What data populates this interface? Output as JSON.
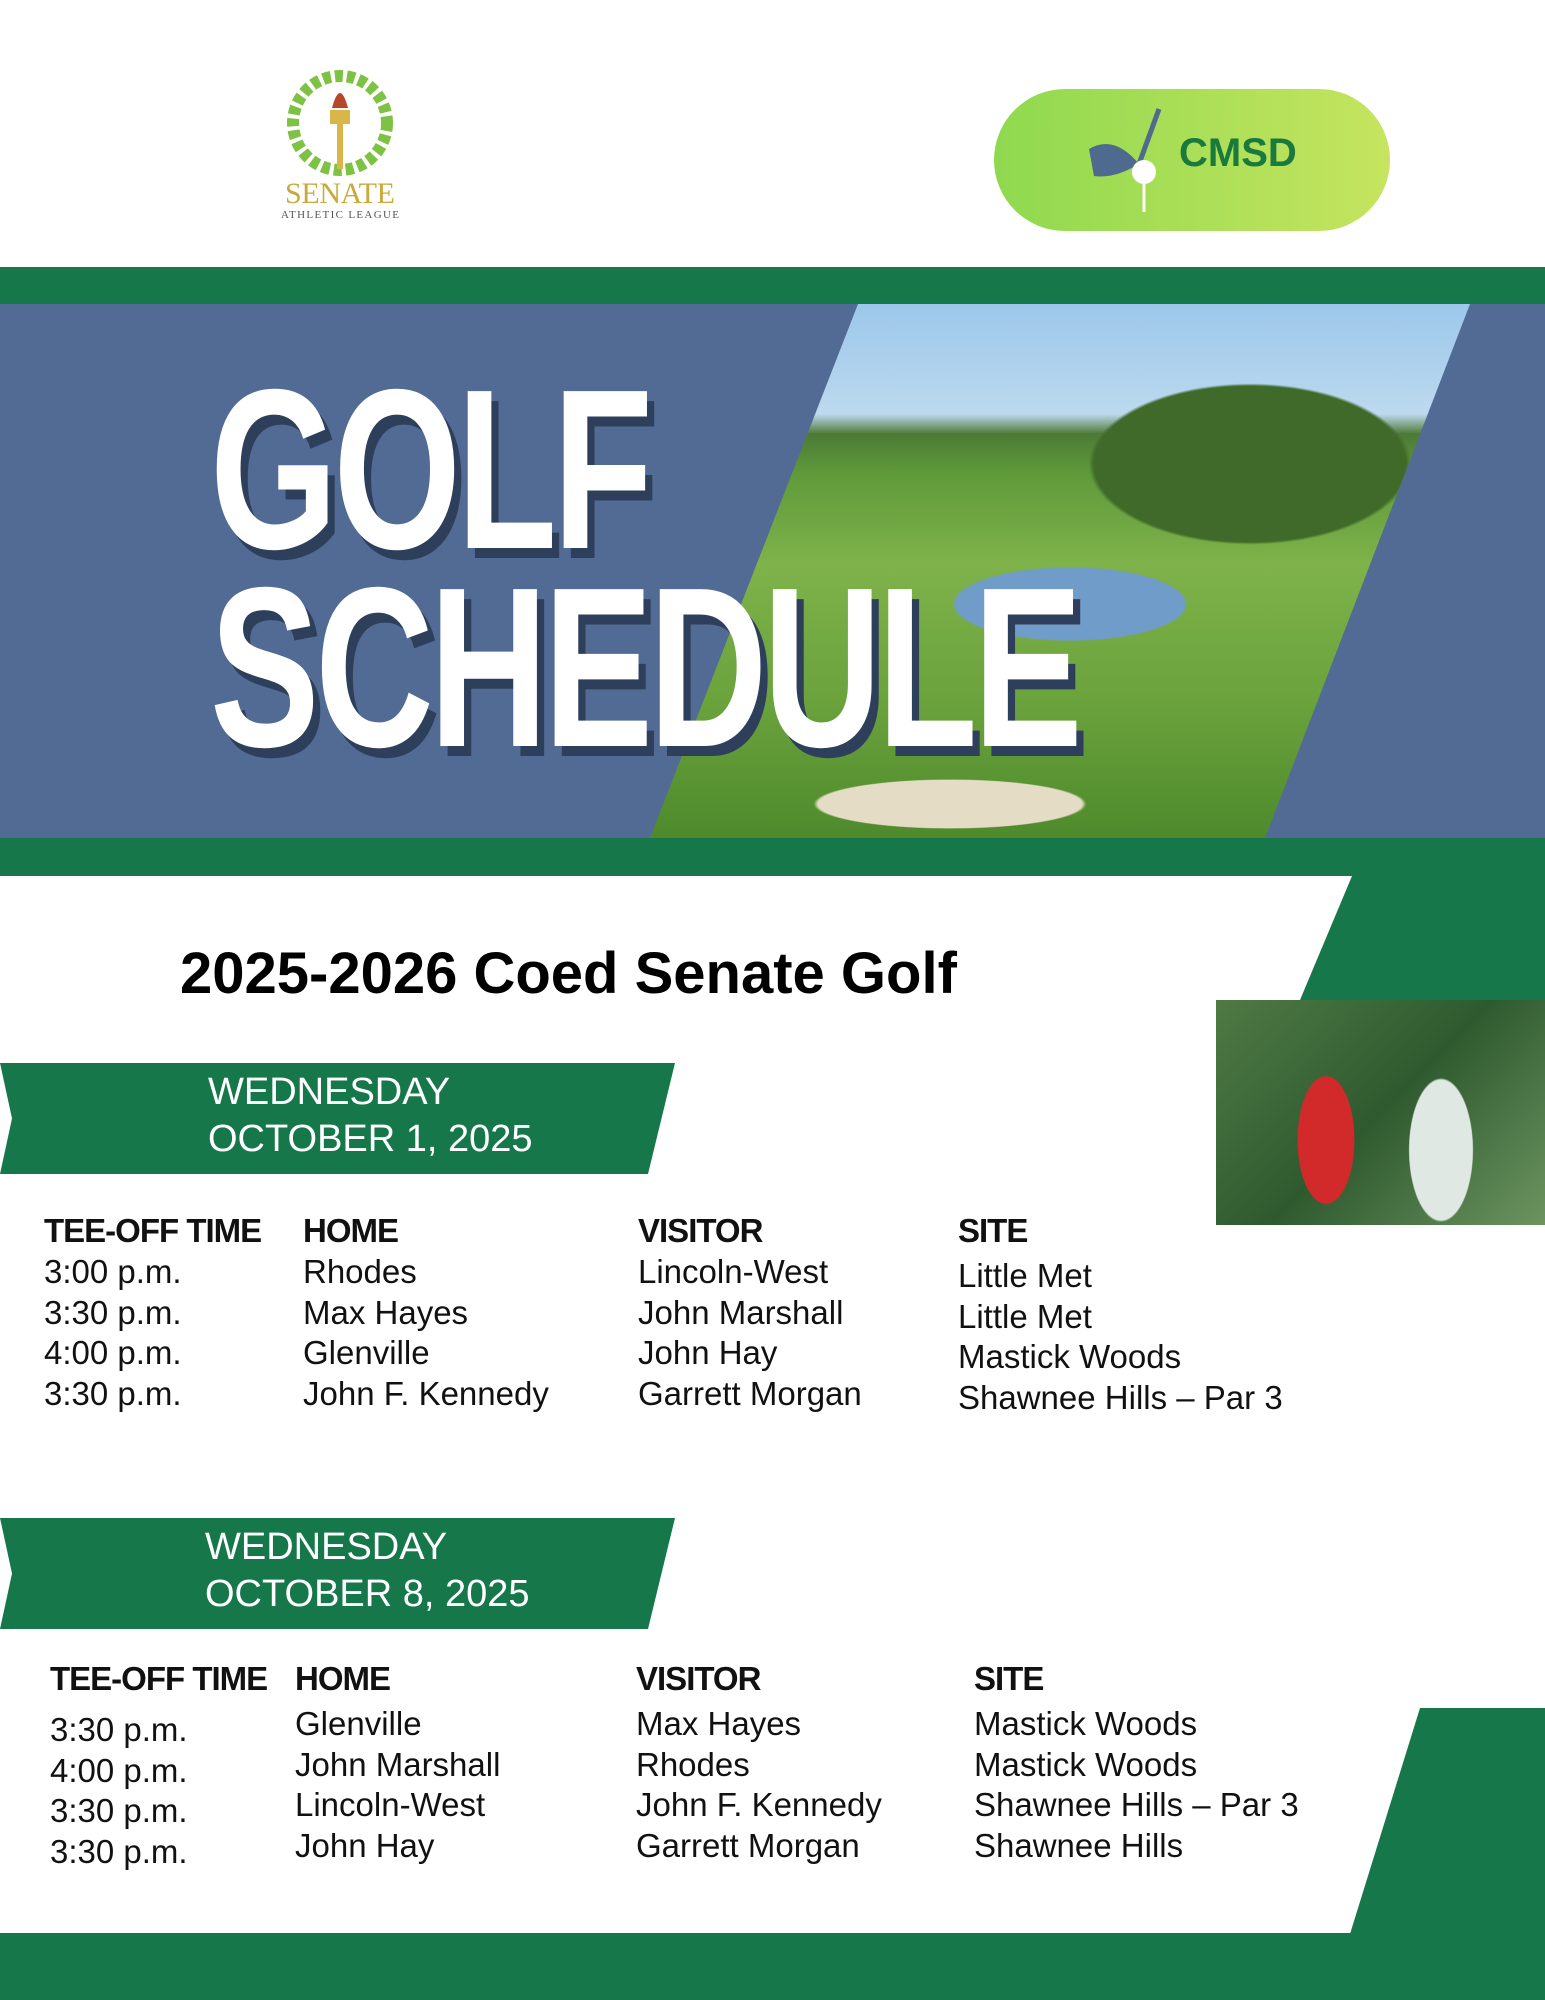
{
  "logos": {
    "senate": "SENATE",
    "senate_sub": "ATHLETIC LEAGUE",
    "cmsd": "CMSD"
  },
  "colors": {
    "green": "#16784a",
    "blue": "#516b95",
    "pill": "#a6dd55"
  },
  "title": {
    "line1": "GOLF",
    "line2": "SCHEDULE"
  },
  "heading": "2025-2026 Coed Senate Golf",
  "headers": [
    "TEE-OFF TIME",
    "HOME",
    "VISITOR",
    "SITE"
  ],
  "weeks": [
    {
      "day": "WEDNESDAY",
      "date": "OCTOBER 1, 2025",
      "rows": [
        [
          "3:00 p.m.",
          "Rhodes",
          "Lincoln-West",
          "Little Met"
        ],
        [
          "3:30 p.m.",
          "Max Hayes",
          "John Marshall",
          "Little Met"
        ],
        [
          "4:00 p.m.",
          "Glenville",
          "John Hay",
          "Mastick Woods"
        ],
        [
          "3:30 p.m.",
          "John F. Kennedy",
          "Garrett Morgan",
          "Shawnee Hills – Par 3"
        ]
      ]
    },
    {
      "day": "WEDNESDAY",
      "date": "OCTOBER 8, 2025",
      "rows": [
        [
          "3:30 p.m.",
          "Glenville",
          "Max Hayes",
          "Mastick Woods"
        ],
        [
          "4:00 p.m.",
          "John Marshall",
          "Rhodes",
          "Mastick Woods"
        ],
        [
          "3:30 p.m.",
          "Lincoln-West",
          "John F. Kennedy",
          "Shawnee Hills – Par 3"
        ],
        [
          "3:30 p.m.",
          "John Hay",
          "Garrett Morgan",
          "Shawnee Hills"
        ]
      ]
    }
  ]
}
